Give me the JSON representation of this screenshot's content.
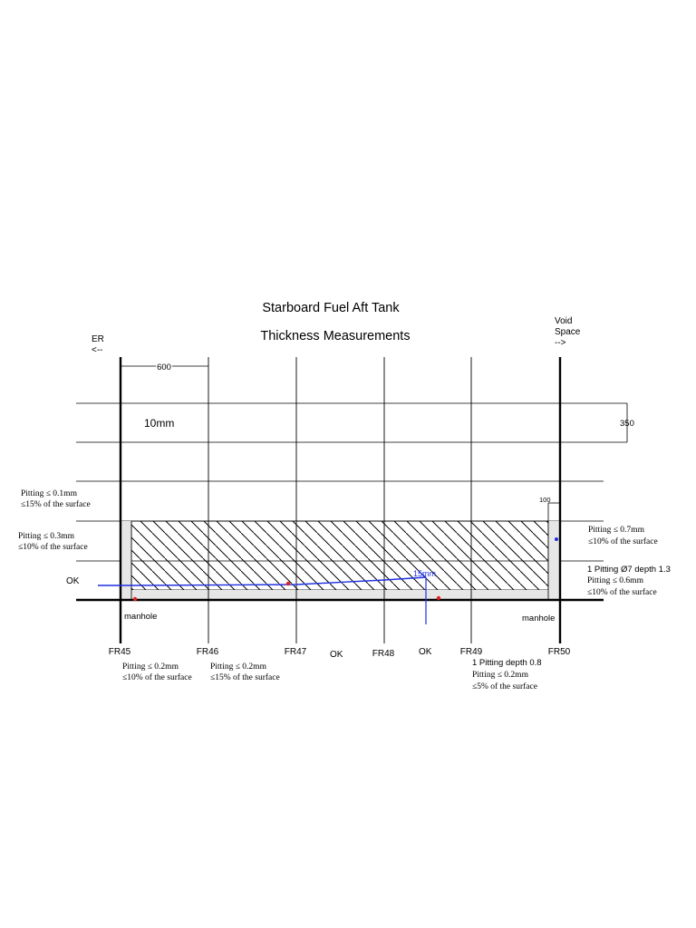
{
  "title": {
    "line1": "Starboard Fuel Aft Tank",
    "line2": "Thickness Measurements"
  },
  "orientation": {
    "left": {
      "line1": "ER",
      "line2": "<--"
    },
    "right": {
      "line1": "Void",
      "line2": "Space",
      "line3": "-->"
    }
  },
  "dimensions": {
    "frame_spacing": "600",
    "plate_thickness": "10mm",
    "height_right": "350",
    "small_offset": "100",
    "gap_blue": "15mm"
  },
  "frames": [
    "FR45",
    "FR46",
    "FR47",
    "FR48",
    "FR49",
    "FR50"
  ],
  "manholes": {
    "left": "manhole",
    "right": "manhole"
  },
  "left_notes": {
    "n1_line1": "Pitting ≤ 0.1mm",
    "n1_line2": "≤15% of the surface",
    "n2_line1": "Pitting ≤ 0.3mm",
    "n2_line2": "≤10% of the surface",
    "ok": "OK"
  },
  "right_notes": {
    "n1_line1": "Pitting ≤ 0.7mm",
    "n1_line2": "≤10% of the surface",
    "n2_line1": "1 Pitting Ø7 depth 1.3",
    "n2_line2": "Pitting ≤ 0.6mm",
    "n2_line3": "≤10% of the surface"
  },
  "bottom_notes": {
    "fr45_line1": "Pitting ≤ 0.2mm",
    "fr45_line2": "≤10% of the surface",
    "fr46_line1": "Pitting ≤ 0.2mm",
    "fr46_line2": "≤15% of the surface",
    "ok_fr47": "OK",
    "ok_fr48": "OK",
    "fr49_line1": "1 Pitting depth 0.8",
    "fr49_line2": "Pitting ≤ 0.2mm",
    "fr49_line3": "≤5% of the surface"
  },
  "colors": {
    "line": "#000000",
    "blue_marker": "#1f2fe0",
    "red_marker": "#e02020",
    "hatch_fill": "#e6e6e6"
  }
}
